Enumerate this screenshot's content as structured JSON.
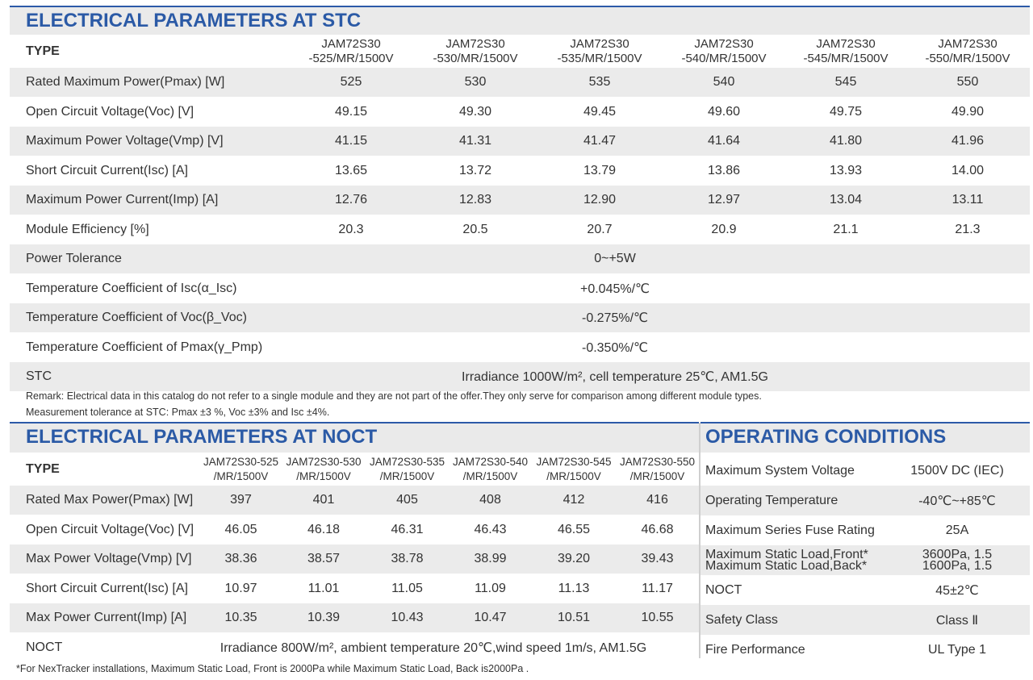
{
  "stc": {
    "title": "ELECTRICAL PARAMETERS AT STC",
    "type_label": "TYPE",
    "models": [
      {
        "l1": "JAM72S30",
        "l2": "-525/MR/1500V"
      },
      {
        "l1": "JAM72S30",
        "l2": "-530/MR/1500V"
      },
      {
        "l1": "JAM72S30",
        "l2": "-535/MR/1500V"
      },
      {
        "l1": "JAM72S30",
        "l2": "-540/MR/1500V"
      },
      {
        "l1": "JAM72S30",
        "l2": "-545/MR/1500V"
      },
      {
        "l1": "JAM72S30",
        "l2": "-550/MR/1500V"
      }
    ],
    "rows": [
      {
        "label": "Rated Maximum Power(Pmax) [W]",
        "values": [
          "525",
          "530",
          "535",
          "540",
          "545",
          "550"
        ]
      },
      {
        "label": "Open Circuit Voltage(Voc) [V]",
        "values": [
          "49.15",
          "49.30",
          "49.45",
          "49.60",
          "49.75",
          "49.90"
        ]
      },
      {
        "label": "Maximum Power Voltage(Vmp) [V]",
        "values": [
          "41.15",
          "41.31",
          "41.47",
          "41.64",
          "41.80",
          "41.96"
        ]
      },
      {
        "label": "Short Circuit Current(Isc) [A]",
        "values": [
          "13.65",
          "13.72",
          "13.79",
          "13.86",
          "13.93",
          "14.00"
        ]
      },
      {
        "label": "Maximum Power Current(Imp) [A]",
        "values": [
          "12.76",
          "12.83",
          "12.90",
          "12.97",
          "13.04",
          "13.11"
        ]
      },
      {
        "label": "Module Efficiency [%]",
        "values": [
          "20.3",
          "20.5",
          "20.7",
          "20.9",
          "21.1",
          "21.3"
        ]
      }
    ],
    "span_rows": [
      {
        "label": "Power Tolerance",
        "value": "0~+5W"
      },
      {
        "label": "Temperature Coefficient of Isc(α_Isc)",
        "value": "+0.045%/℃"
      },
      {
        "label": "Temperature Coefficient of Voc(β_Voc)",
        "value": "-0.275%/℃"
      },
      {
        "label": "Temperature Coefficient of Pmax(γ_Pmp)",
        "value": "-0.350%/℃"
      },
      {
        "label": "STC",
        "value": "Irradiance 1000W/m², cell temperature 25℃, AM1.5G"
      }
    ],
    "remark1": "Remark: Electrical data in this catalog do not refer to a single module and they are not part of the offer.They only serve for comparison among different module types.",
    "remark2": "Measurement tolerance at STC: Pmax ±3 %, Voc ±3% and Isc ±4%."
  },
  "noct": {
    "title": "ELECTRICAL PARAMETERS AT NOCT",
    "type_label": "TYPE",
    "models": [
      {
        "l1": "JAM72S30-525",
        "l2": "/MR/1500V"
      },
      {
        "l1": "JAM72S30-530",
        "l2": "/MR/1500V"
      },
      {
        "l1": "JAM72S30-535",
        "l2": "/MR/1500V"
      },
      {
        "l1": "JAM72S30-540",
        "l2": "/MR/1500V"
      },
      {
        "l1": "JAM72S30-545",
        "l2": "/MR/1500V"
      },
      {
        "l1": "JAM72S30-550",
        "l2": "/MR/1500V"
      }
    ],
    "rows": [
      {
        "label": "Rated Max Power(Pmax) [W]",
        "values": [
          "397",
          "401",
          "405",
          "408",
          "412",
          "416"
        ]
      },
      {
        "label": "Open Circuit Voltage(Voc) [V]",
        "values": [
          "46.05",
          "46.18",
          "46.31",
          "46.43",
          "46.55",
          "46.68"
        ]
      },
      {
        "label": "Max Power Voltage(Vmp) [V]",
        "values": [
          "38.36",
          "38.57",
          "38.78",
          "38.99",
          "39.20",
          "39.43"
        ]
      },
      {
        "label": "Short Circuit Current(Isc) [A]",
        "values": [
          "10.97",
          "11.01",
          "11.05",
          "11.09",
          "11.13",
          "11.17"
        ]
      },
      {
        "label": "Max Power Current(Imp) [A]",
        "values": [
          "10.35",
          "10.39",
          "10.43",
          "10.47",
          "10.51",
          "10.55"
        ]
      }
    ],
    "noct_row": {
      "label": "NOCT",
      "value": "Irradiance 800W/m², ambient temperature 20℃,wind speed 1m/s, AM1.5G"
    }
  },
  "operating": {
    "title": "OPERATING CONDITIONS",
    "rows": [
      {
        "label": "Maximum System Voltage",
        "value": "1500V DC (IEC)"
      },
      {
        "label": "Operating Temperature",
        "value": "-40℃~+85℃"
      },
      {
        "label": "Maximum Series Fuse Rating",
        "value": "25A"
      },
      {
        "label": "Maximum Static Load,Front*",
        "value": "3600Pa, 1.5",
        "label2": "Maximum Static Load,Back*",
        "value2": "1600Pa, 1.5"
      },
      {
        "label": "NOCT",
        "value": "45±2℃"
      },
      {
        "label": "Safety Class",
        "value": "Class Ⅱ"
      },
      {
        "label": "Fire Performance",
        "value": "UL Type 1"
      }
    ]
  },
  "footnote": "*For NexTracker installations, Maximum Static Load, Front is 2000Pa while Maximum Static Load, Back is2000Pa ."
}
